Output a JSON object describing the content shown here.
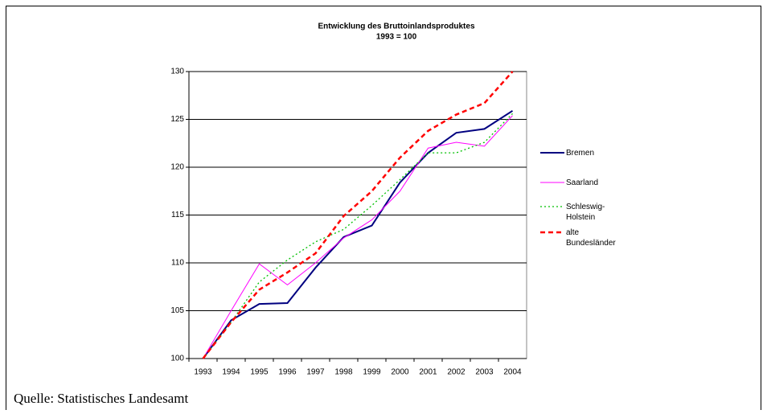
{
  "chart_data": {
    "type": "line",
    "title": "Entwicklung des Bruttoinlandsproduktes",
    "subtitle": "1993 = 100",
    "categories": [
      "1993",
      "1994",
      "1995",
      "1996",
      "1997",
      "1998",
      "1999",
      "2000",
      "2001",
      "2002",
      "2003",
      "2004"
    ],
    "series": [
      {
        "name": "Bremen",
        "color": "#000080",
        "dash": "solid",
        "values": [
          100,
          104,
          105.7,
          105.8,
          109.5,
          112.7,
          113.9,
          118.4,
          121.5,
          123.6,
          124,
          125.9
        ]
      },
      {
        "name": "Saarland",
        "color": "#ff00ff",
        "dash": "solid",
        "values": [
          100,
          105,
          109.9,
          107.7,
          110,
          112.6,
          114.5,
          117.5,
          122,
          122.6,
          122.2,
          125.4
        ]
      },
      {
        "name": "Schleswig-Holstein",
        "color": "#00c000",
        "dash": "dotted",
        "values": [
          100,
          103.8,
          108,
          110.3,
          112.2,
          113.5,
          116,
          118.7,
          121.5,
          121.5,
          122.6,
          125.6
        ]
      },
      {
        "name": "alte Bundesländer",
        "color": "#ff0000",
        "dash": "dashed",
        "values": [
          100,
          103.8,
          107.2,
          109,
          111,
          114.9,
          117.5,
          121,
          123.8,
          125.5,
          126.7,
          130
        ]
      }
    ],
    "ylim": [
      100,
      130
    ],
    "yticks": [
      100,
      105,
      110,
      115,
      120,
      125,
      130
    ],
    "grid": true,
    "source": "Quelle: Statistisches Landesamt"
  }
}
